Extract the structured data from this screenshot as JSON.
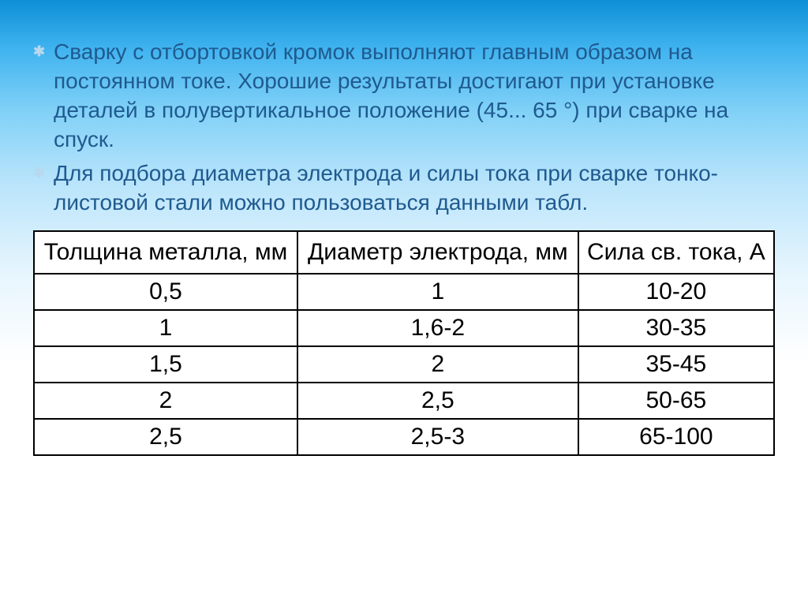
{
  "slide": {
    "bullets": [
      "Сварку с отбортовкой кромок выполняют главным образом на постоянном токе. Хорошие результаты достигают при установке деталей в полувертикальное положение (45... 65 °) при сварке на спуск.",
      "Для подбора диаметра электрода и силы тока при сварке тонко- листовой стали можно пользоваться данными табл."
    ],
    "bullet_color": "#1f5a8f",
    "bullet_marker_color": "#b7d8ef",
    "bullet_fontsize": 28,
    "background_gradient": [
      "#0d8fd6",
      "#3fb3ef",
      "#7fd0f7",
      "#b8e4fb",
      "#e6f5fd",
      "#ffffff"
    ]
  },
  "table": {
    "type": "table",
    "border_color": "#000000",
    "border_width": 2,
    "cell_background": "#ffffff",
    "text_color": "#000000",
    "header_fontsize": 30,
    "cell_fontsize": 30,
    "columns": [
      "Толщина металла, мм",
      "Диаметр электрода, мм",
      "Сила св. тока, А"
    ],
    "rows": [
      [
        "0,5",
        "1",
        "10-20"
      ],
      [
        "1",
        "1,6-2",
        "30-35"
      ],
      [
        "1,5",
        "2",
        "35-45"
      ],
      [
        "2",
        "2,5",
        "50-65"
      ],
      [
        "2,5",
        "2,5-3",
        "65-100"
      ]
    ]
  }
}
